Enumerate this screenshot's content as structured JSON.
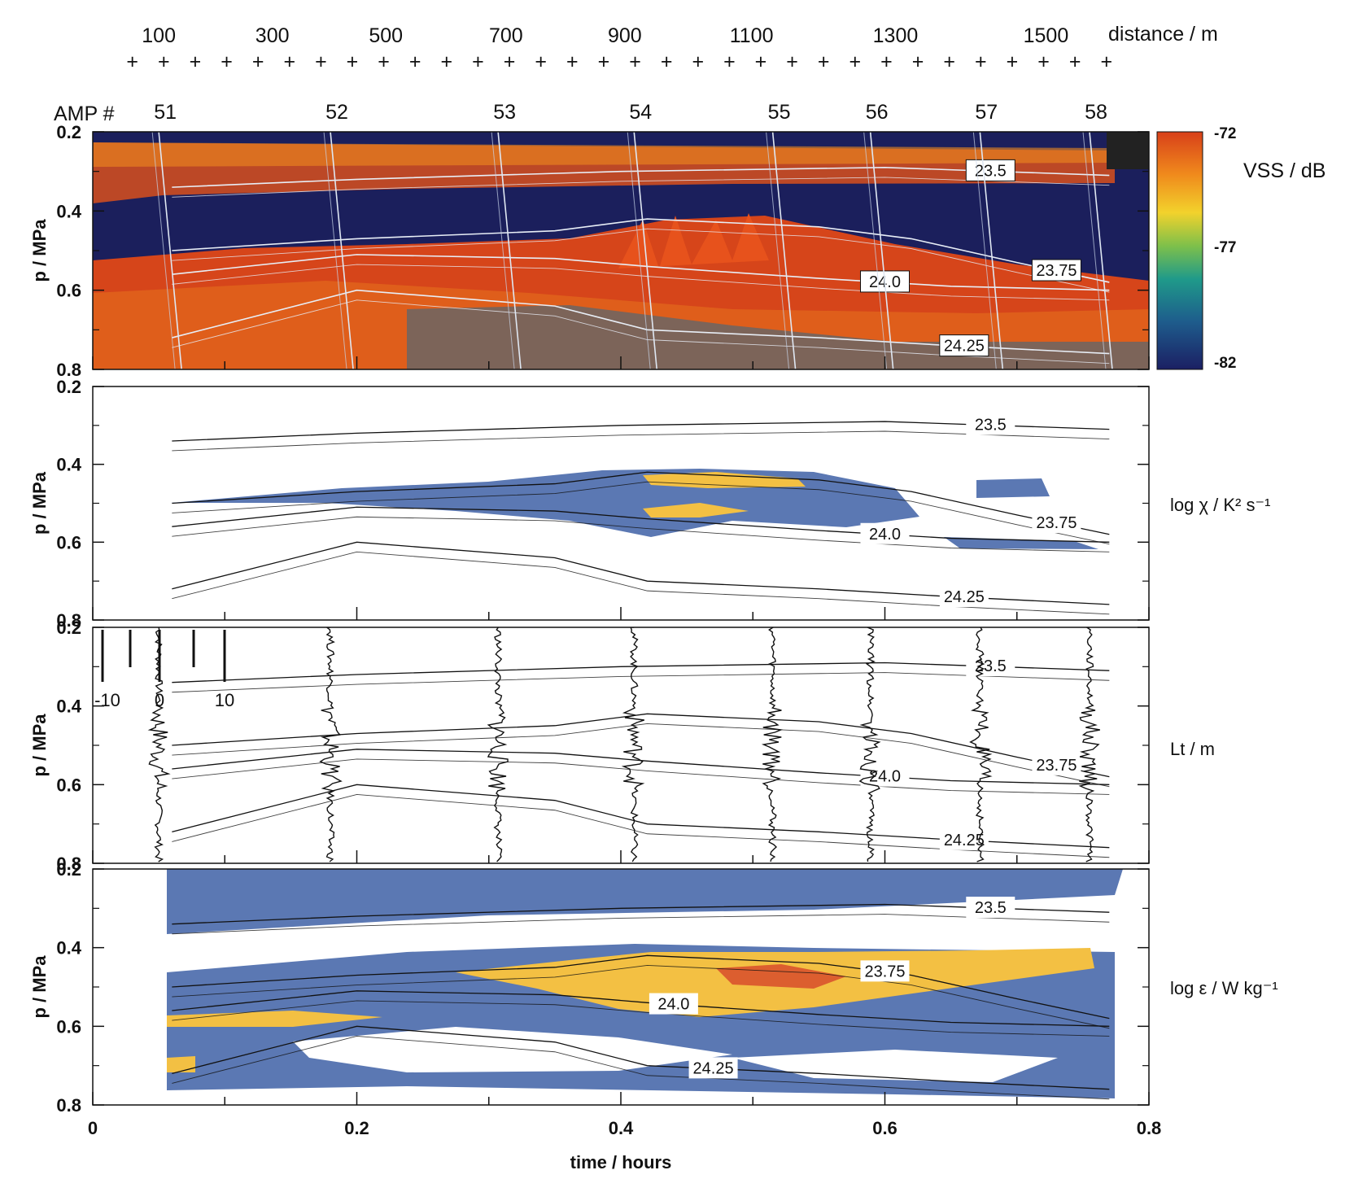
{
  "chart_data": {
    "type": "heatmap",
    "xlabel": "time / hours",
    "x_ticks": [
      "0",
      "0.2",
      "0.4",
      "0.6",
      "0.8"
    ],
    "xlim": [
      0,
      0.8
    ],
    "distance_axis": {
      "label": "distance / m",
      "tick_labels": [
        "100",
        "300",
        "500",
        "700",
        "900",
        "1100",
        "1300",
        "1500"
      ],
      "tick_values": [
        100,
        300,
        500,
        700,
        900,
        1100,
        1300,
        1500
      ],
      "time_at_ticks": [
        0.05,
        0.136,
        0.222,
        0.313,
        0.403,
        0.499,
        0.608,
        0.722
      ]
    },
    "amp_profiles": {
      "label": "AMP #",
      "numbers": [
        "51",
        "52",
        "53",
        "54",
        "55",
        "56",
        "57",
        "58"
      ],
      "times": [
        0.05,
        0.18,
        0.307,
        0.41,
        0.515,
        0.589,
        0.672,
        0.755
      ]
    },
    "panels": [
      {
        "id": "vss",
        "ylabel": "p / MPa",
        "y_ticks": [
          "0.2",
          "0.4",
          "0.6",
          "0.8"
        ],
        "ylim": [
          0.2,
          0.8
        ],
        "colorbar": {
          "label": "VSS / dB",
          "ticks": [
            "-72",
            "-77",
            "-82"
          ],
          "range": [
            -82,
            -72
          ],
          "colors": [
            "#1b1f63",
            "#1e5c8c",
            "#1f9a8a",
            "#7ec04a",
            "#f2d22c",
            "#f08a1c",
            "#d8401a"
          ]
        },
        "contour_labels": [
          "23.5",
          "23.75",
          "24.0",
          "24.25"
        ]
      },
      {
        "id": "chi",
        "ylabel": "p / MPa",
        "y_ticks": [
          "0.2",
          "0.4",
          "0.6",
          "0.8"
        ],
        "ylim": [
          0.2,
          0.8
        ],
        "side_label": "log χ / K² s⁻¹",
        "contour_labels": [
          "23.5",
          "23.75",
          "24.0",
          "24.25"
        ]
      },
      {
        "id": "lt",
        "ylabel": "p / MPa",
        "y_ticks": [
          "0.2",
          "0.4",
          "0.6",
          "0.8"
        ],
        "ylim": [
          0.2,
          0.8
        ],
        "side_label": "Lt / m",
        "scale_ticks": [
          "-10",
          "0",
          "10"
        ],
        "contour_labels": [
          "23.5",
          "23.75",
          "24.0",
          "24.25"
        ]
      },
      {
        "id": "eps",
        "ylabel": "p / MPa",
        "y_ticks": [
          "0.2",
          "0.4",
          "0.6",
          "0.8"
        ],
        "ylim": [
          0.2,
          0.8
        ],
        "side_label": "log ε / W kg⁻¹",
        "contour_labels": [
          "23.5",
          "24.0",
          "23.75",
          "24.25"
        ]
      }
    ],
    "isopycnals": [
      {
        "name": "23.5",
        "x": [
          0.06,
          0.2,
          0.4,
          0.6,
          0.77
        ],
        "p": [
          0.34,
          0.32,
          0.3,
          0.29,
          0.31
        ]
      },
      {
        "name": "23.75",
        "x": [
          0.06,
          0.2,
          0.35,
          0.42,
          0.55,
          0.62,
          0.7,
          0.77
        ],
        "p": [
          0.5,
          0.47,
          0.45,
          0.42,
          0.44,
          0.47,
          0.53,
          0.58
        ]
      },
      {
        "name": "24.0",
        "x": [
          0.06,
          0.2,
          0.35,
          0.42,
          0.55,
          0.65,
          0.77
        ],
        "p": [
          0.56,
          0.51,
          0.52,
          0.54,
          0.57,
          0.59,
          0.6
        ]
      },
      {
        "name": "24.25",
        "x": [
          0.06,
          0.2,
          0.35,
          0.42,
          0.55,
          0.65,
          0.77
        ],
        "p": [
          0.72,
          0.6,
          0.64,
          0.7,
          0.72,
          0.74,
          0.76
        ]
      }
    ]
  },
  "colors": {
    "cold": "#5b78b3",
    "warm": "#f3c043",
    "hot": "#d6452a",
    "night": "#1b1f5c"
  }
}
